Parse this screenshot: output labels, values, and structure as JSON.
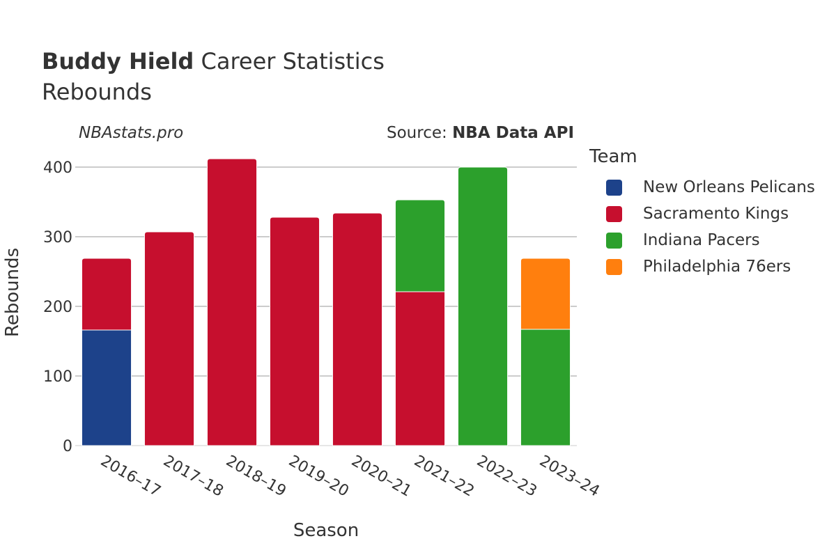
{
  "header": {
    "title_bold": "Buddy Hield",
    "title_rest": " Career Statistics",
    "subtitle": "Rebounds",
    "credit": "NBAstats.pro",
    "source_prefix": "Source: ",
    "source_name": "NBA Data API"
  },
  "chart_data": {
    "type": "bar",
    "stacked": true,
    "xlabel": "Season",
    "ylabel": "Rebounds",
    "ylim": [
      0,
      420
    ],
    "yticks": [
      0,
      100,
      200,
      300,
      400
    ],
    "grid": true,
    "legend_title": "Team",
    "legend_position": "right",
    "categories": [
      "2016–17",
      "2017–18",
      "2018–19",
      "2019–20",
      "2020–21",
      "2021–22",
      "2022–23",
      "2023–24"
    ],
    "series": [
      {
        "name": "New Orleans Pelicans",
        "color": "#1d428a",
        "values": [
          166,
          0,
          0,
          0,
          0,
          0,
          0,
          0
        ]
      },
      {
        "name": "Sacramento Kings",
        "color": "#c60f2e",
        "values": [
          103,
          307,
          412,
          328,
          334,
          221,
          0,
          0
        ]
      },
      {
        "name": "Indiana Pacers",
        "color": "#2ca02c",
        "values": [
          0,
          0,
          0,
          0,
          0,
          132,
          400,
          167
        ]
      },
      {
        "name": "Philadelphia 76ers",
        "color": "#ff7f0e",
        "values": [
          0,
          0,
          0,
          0,
          0,
          0,
          0,
          102
        ]
      }
    ]
  }
}
